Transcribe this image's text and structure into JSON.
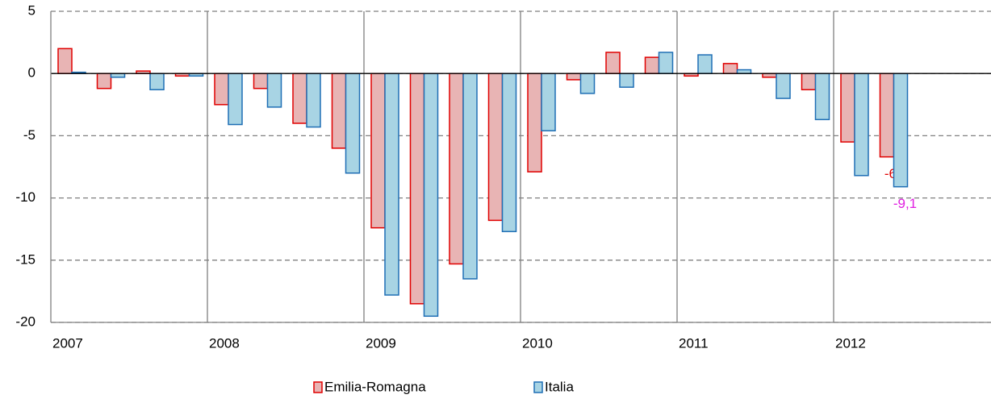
{
  "chart_data": {
    "type": "bar",
    "categories": [
      "2007",
      null,
      null,
      null,
      "2008",
      null,
      null,
      null,
      "2009",
      null,
      null,
      null,
      "2010",
      null,
      null,
      null,
      "2011",
      null,
      null,
      null,
      "2012",
      null
    ],
    "series": [
      {
        "name": "Emilia-Romagna",
        "color": "#e8b4b4",
        "edge": "#e00000",
        "values": [
          2.0,
          -1.2,
          0.2,
          -0.2,
          -2.5,
          -1.2,
          -4.0,
          -6.0,
          -12.4,
          -18.5,
          -15.3,
          -11.8,
          -7.9,
          -0.5,
          1.7,
          1.3,
          -0.2,
          0.8,
          -0.3,
          -1.3,
          -5.5,
          -6.7
        ],
        "value_labels": [
          null,
          null,
          null,
          null,
          null,
          null,
          null,
          null,
          null,
          null,
          null,
          null,
          null,
          null,
          null,
          null,
          null,
          null,
          null,
          null,
          null,
          "-6,7"
        ],
        "label_color": "#e00000"
      },
      {
        "name": "Italia",
        "color": "#a8d4e4",
        "edge": "#1f6fb5",
        "values": [
          0.1,
          -0.3,
          -1.3,
          -0.2,
          -4.1,
          -2.7,
          -4.3,
          -8.0,
          -17.8,
          -19.5,
          -16.5,
          -12.7,
          -4.6,
          -1.6,
          -1.1,
          1.7,
          1.5,
          0.3,
          -2.0,
          -3.7,
          -8.2,
          -9.1
        ],
        "value_labels": [
          null,
          null,
          null,
          null,
          null,
          null,
          null,
          null,
          null,
          null,
          null,
          null,
          null,
          null,
          null,
          null,
          null,
          null,
          null,
          null,
          null,
          "-9,1"
        ],
        "label_color": "#e020e0"
      }
    ],
    "ylim": [
      -20,
      5
    ],
    "yticks": [
      5,
      0,
      -5,
      -10,
      -15,
      -20
    ],
    "grid": true
  }
}
